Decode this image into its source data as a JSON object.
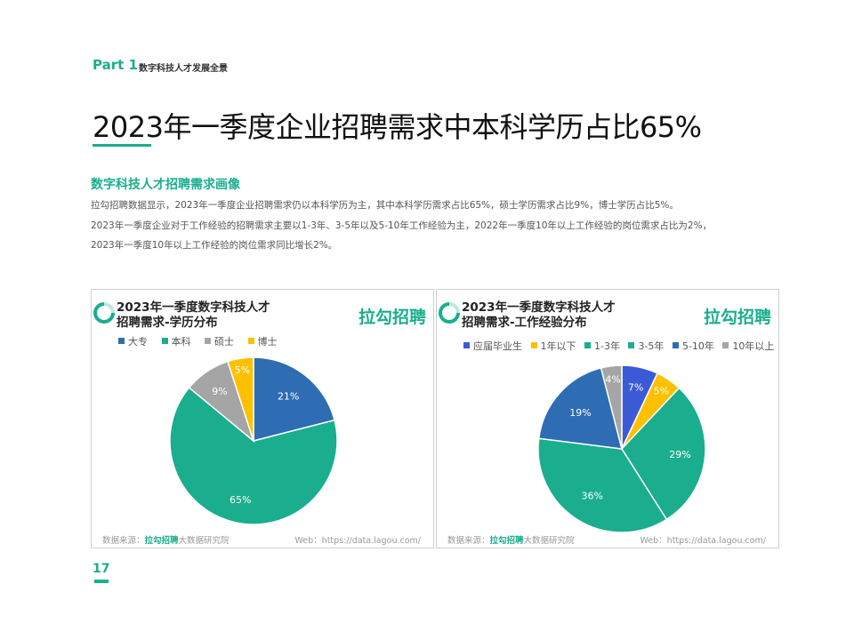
{
  "header": {
    "part": "Part 1",
    "part_subtitle": "数字科技人才发展全景",
    "title": "2023年一季度企业招聘需求中本科学历占比65%"
  },
  "section": {
    "heading": "数字科技人才招聘需求画像",
    "paragraphs": [
      "拉勾招聘数据显示，2023年一季度企业招聘需求仍以本科学历为主，其中本科学历需求占比65%，硕士学历需求占比9%，博士学历占比5%。",
      "2023年一季度企业对于工作经验的招聘需求主要以1-3年、3-5年以及5-10年工作经验为主，2022年一季度10年以上工作经验的岗位需求占比为2%，",
      "2023年一季度10年以上工作经验的岗位需求同比增长2%。"
    ]
  },
  "page_number": "17",
  "colors": {
    "accent": "#1aae8e",
    "blue": "#2e6db4",
    "green": "#1aae8e",
    "gray": "#a5a5a5",
    "yellow": "#ffc000",
    "royal": "#3b5bd6"
  },
  "charts": [
    {
      "title_line1": "2023年一季度数字科技人才",
      "title_line2": "招聘需求-学历分布",
      "brand": "拉勾招聘",
      "footer_prefix": "数据来源：",
      "footer_brand": "拉勾招聘",
      "footer_suffix": "大数据研究院",
      "footer_web": "Web：https://data.lagou.com/",
      "legend": [
        {
          "label": "大专",
          "color": "#2e6db4"
        },
        {
          "label": "本科",
          "color": "#1aae8e"
        },
        {
          "label": "硕士",
          "color": "#a5a5a5"
        },
        {
          "label": "博士",
          "color": "#ffc000"
        }
      ]
    },
    {
      "title_line1": "2023年一季度数字科技人才",
      "title_line2": "招聘需求-工作经验分布",
      "brand": "拉勾招聘",
      "footer_prefix": "数据来源：",
      "footer_brand": "拉勾招聘",
      "footer_suffix": "大数据研究院",
      "footer_web": "Web：https://data.lagou.com/",
      "legend": [
        {
          "label": "应届毕业生",
          "color": "#3b5bd6"
        },
        {
          "label": "1年以下",
          "color": "#ffc000"
        },
        {
          "label": "1-3年",
          "color": "#1aae8e"
        },
        {
          "label": "3-5年",
          "color": "#1aae8e"
        },
        {
          "label": "5-10年",
          "color": "#2e6db4"
        },
        {
          "label": "10年以上",
          "color": "#a5a5a5"
        }
      ]
    }
  ],
  "chart_data": [
    {
      "type": "pie",
      "title": "2023年一季度数字科技人才招聘需求-学历分布",
      "categories": [
        "大专",
        "本科",
        "硕士",
        "博士"
      ],
      "values": [
        21,
        65,
        9,
        5
      ],
      "labels": [
        "21%",
        "65%",
        "9%",
        "5%"
      ],
      "colors": [
        "#2e6db4",
        "#1aae8e",
        "#a5a5a5",
        "#ffc000"
      ],
      "legend_position": "top"
    },
    {
      "type": "pie",
      "title": "2023年一季度数字科技人才招聘需求-工作经验分布",
      "categories": [
        "应届毕业生",
        "1年以下",
        "1-3年",
        "3-5年",
        "5-10年",
        "10年以上"
      ],
      "values": [
        7,
        5,
        29,
        36,
        19,
        4
      ],
      "labels": [
        "7%",
        "5%",
        "29%",
        "36%",
        "19%",
        "4%"
      ],
      "colors": [
        "#3b5bd6",
        "#ffc000",
        "#1aae8e",
        "#1aae8e",
        "#2e6db4",
        "#a5a5a5"
      ],
      "legend_position": "top"
    }
  ]
}
